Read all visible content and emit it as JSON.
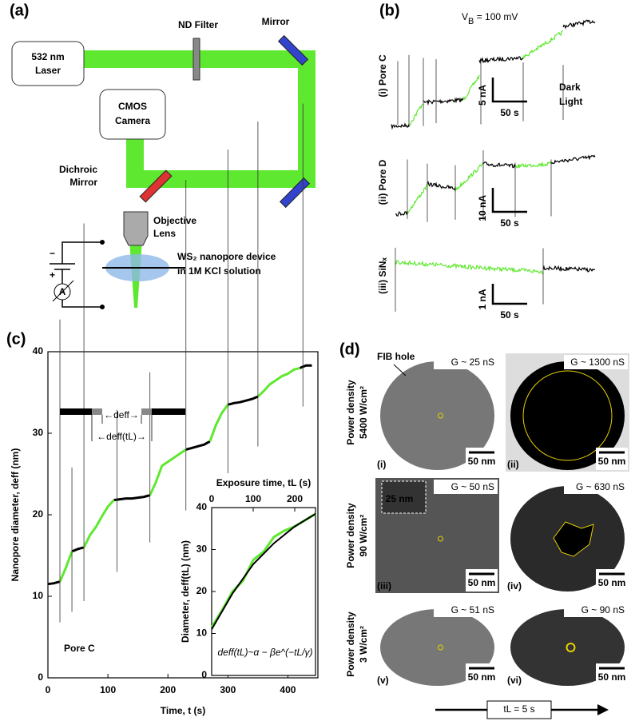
{
  "panel_a": {
    "label": "(a)",
    "laser": [
      "532 nm",
      "Laser"
    ],
    "nd_filter": "ND Filter",
    "mirror": "Mirror",
    "camera": [
      "CMOS",
      "Camera"
    ],
    "dichroic": [
      "Dichroic",
      "Mirror"
    ],
    "objective": [
      "Objective",
      "Lens"
    ],
    "device": [
      "WS₂ nanopore device",
      "in 1M KCl solution"
    ],
    "ammeter": "A",
    "minus": "−",
    "plus": "+"
  },
  "panel_b": {
    "label": "(b)",
    "bias": [
      "V",
      "B",
      " = 100 mV"
    ],
    "traces": [
      {
        "label": "(i) Pore C",
        "current_bar": "5 nA",
        "time_bar": "50 s"
      },
      {
        "label": "(ii) Pore D",
        "current_bar": "10 nA",
        "time_bar": "50 s"
      },
      {
        "label": "(iii) SiNₓ",
        "current_bar": "1 nA",
        "time_bar": "50 s"
      }
    ],
    "legend": [
      {
        "name": "Dark",
        "color": "#000000"
      },
      {
        "name": "Light",
        "color": "#5fe830"
      }
    ]
  },
  "panel_c": {
    "label": "(c)",
    "schematic": [
      "←deff→",
      "←deff(tL)→"
    ],
    "annotation": "Pore C",
    "formula": "deff(tL)~α − βe^(−tL/γ)"
  },
  "chart_data": [
    {
      "type": "line",
      "x_label": "Time, t (s)",
      "y_label": "Nanopore diameter, deff (nm)",
      "x": [
        0,
        10,
        20,
        30,
        40,
        50,
        60,
        70,
        80,
        90,
        100,
        110,
        120,
        130,
        140,
        150,
        160,
        170,
        180,
        190,
        200,
        210,
        220,
        230,
        240,
        250,
        260,
        270,
        280,
        290,
        300,
        310,
        320,
        330,
        340,
        350,
        360,
        370,
        380,
        390,
        400,
        410,
        420,
        430,
        440
      ],
      "series": [
        {
          "color": "#000000",
          "values": [
            11.5,
            11.6,
            11.8,
            null,
            15.5,
            15.8,
            16,
            null,
            null,
            null,
            null,
            21.8,
            21.9,
            22,
            22,
            22.1,
            22.2,
            22.4,
            null,
            null,
            null,
            null,
            null,
            28,
            28.2,
            28.4,
            28.6,
            29,
            null,
            null,
            33.5,
            33.7,
            33.8,
            34,
            34.2,
            34.5,
            null,
            null,
            null,
            null,
            null,
            null,
            38,
            38.3,
            38.3
          ]
        },
        {
          "color": "#5fe830",
          "values": [
            null,
            null,
            11.8,
            13.5,
            15.5,
            null,
            16,
            17.5,
            18.5,
            19.8,
            21,
            21.8,
            null,
            null,
            null,
            null,
            null,
            22.4,
            24,
            26,
            26.5,
            27,
            27.5,
            28,
            null,
            null,
            null,
            29,
            31,
            32.5,
            33.5,
            null,
            null,
            null,
            null,
            34.5,
            35.2,
            36,
            36.5,
            37,
            37.3,
            37.8,
            38,
            null,
            null
          ]
        }
      ],
      "xlim": [
        0,
        450
      ],
      "ylim": [
        0,
        40
      ],
      "xticks": [
        0,
        100,
        200,
        300,
        400
      ],
      "yticks": [
        0,
        10,
        20,
        30,
        40
      ]
    },
    {
      "type": "line",
      "x_label": "Exposure time, tL (s)",
      "y_label": "Diameter, deff(tL) (nm)",
      "series": [
        {
          "color": "#5fe830",
          "x": [
            0,
            25,
            50,
            75,
            100,
            125,
            150,
            175,
            200,
            225,
            250
          ],
          "values": [
            11.5,
            15.5,
            20,
            22.5,
            27.5,
            29.5,
            33,
            34.5,
            35.5,
            37,
            38.5
          ]
        },
        {
          "color": "#000000",
          "x": [
            0,
            50,
            100,
            150,
            200,
            250
          ],
          "values": [
            11,
            19.5,
            26.5,
            31.5,
            35.5,
            38.5
          ]
        }
      ],
      "xlim": [
        0,
        250
      ],
      "ylim": [
        0,
        40
      ],
      "xticks": [
        0,
        100,
        200
      ],
      "yticks": [
        0,
        10,
        20,
        30,
        40
      ]
    }
  ],
  "panel_d": {
    "label": "(d)",
    "fib_hole": "FIB hole",
    "rows": [
      [
        "Power density",
        "5400 W/cm²"
      ],
      [
        "Power density",
        "90 W/cm²"
      ],
      [
        "Power density",
        "3 W/cm²"
      ]
    ],
    "images": [
      {
        "conductance": "G ~ 25 nS",
        "scale": "50 nm",
        "label": "(i)"
      },
      {
        "conductance": "G ~ 1300 nS",
        "scale": "50 nm",
        "label": "(ii)"
      },
      {
        "conductance": "G ~ 50 nS",
        "scale": "50 nm",
        "label": "(iii)"
      },
      {
        "conductance": "G ~ 630 nS",
        "scale": "50 nm",
        "label": "(iv)"
      },
      {
        "conductance": "G ~ 51 nS",
        "scale": "50 nm",
        "label": "(v)"
      },
      {
        "conductance": "G ~ 90 nS",
        "scale": "50 nm",
        "label": "(vi)"
      }
    ],
    "zoom_scale": "25 nm",
    "arrow": "tL = 5 s"
  }
}
